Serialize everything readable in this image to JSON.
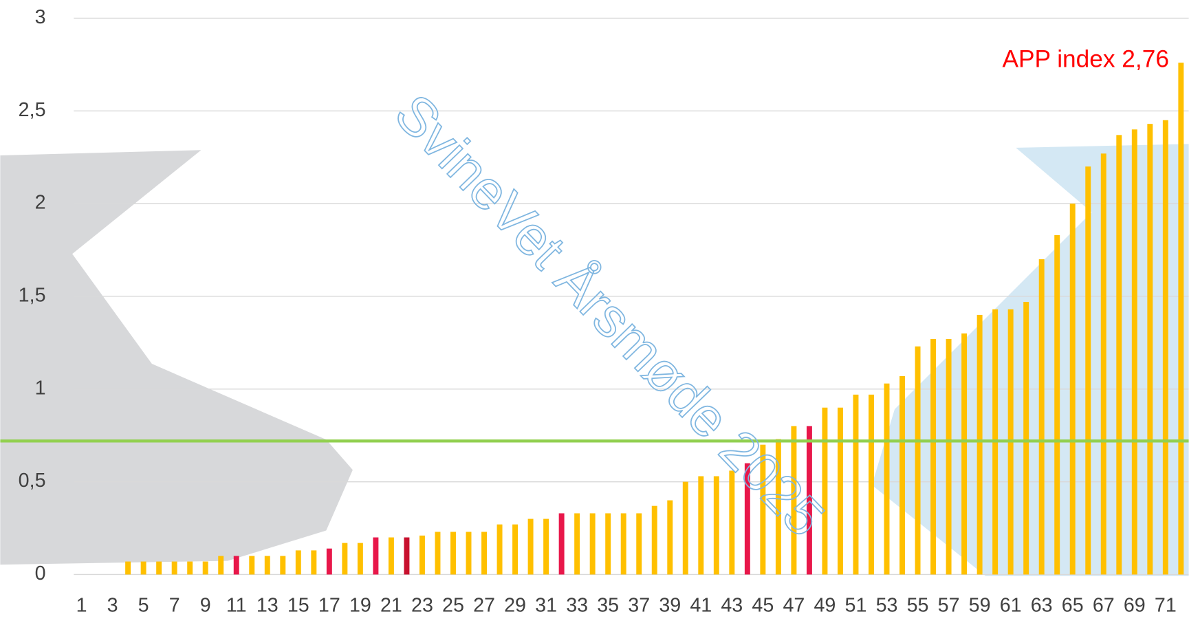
{
  "chart_data": {
    "type": "bar",
    "categories": [
      "1",
      null,
      "3",
      null,
      "5",
      null,
      "7",
      null,
      "9",
      null,
      "11",
      null,
      "13",
      null,
      "15",
      null,
      "17",
      null,
      "19",
      null,
      "21",
      null,
      "23",
      null,
      "25",
      null,
      "27",
      null,
      "29",
      null,
      "31",
      null,
      "33",
      null,
      "35",
      null,
      "37",
      null,
      "39",
      null,
      "41",
      null,
      "43",
      null,
      "45",
      null,
      "47",
      null,
      "49",
      null,
      "51",
      null,
      "53",
      null,
      "55",
      null,
      "57",
      null,
      "59",
      null,
      "61",
      null,
      "63",
      null,
      "65",
      null,
      "67",
      null,
      "69",
      null,
      "71",
      null
    ],
    "values": [
      0,
      0,
      0,
      0.07,
      0.07,
      0.07,
      0.07,
      0.07,
      0.07,
      0.1,
      0.1,
      0.1,
      0.1,
      0.1,
      0.13,
      0.13,
      0.14,
      0.17,
      0.17,
      0.2,
      0.2,
      0.2,
      0.21,
      0.23,
      0.23,
      0.23,
      0.23,
      0.27,
      0.27,
      0.3,
      0.3,
      0.33,
      0.33,
      0.33,
      0.33,
      0.33,
      0.33,
      0.37,
      0.4,
      0.5,
      0.53,
      0.53,
      0.56,
      0.6,
      0.7,
      0.73,
      0.8,
      0.8,
      0.9,
      0.9,
      0.97,
      0.97,
      1.03,
      1.07,
      1.23,
      1.27,
      1.27,
      1.3,
      1.4,
      1.43,
      1.43,
      1.47,
      1.7,
      1.83,
      2.0,
      2.2,
      2.27,
      2.37,
      2.4,
      2.43,
      2.45,
      2.76
    ],
    "colors": [
      "#ffc000",
      "#ffc000",
      "#ffc000",
      "#ffc000",
      "#ffc000",
      "#ffc000",
      "#ffc000",
      "#ffc000",
      "#ffc000",
      "#ffc000",
      "#e8174a",
      "#ffc000",
      "#ffc000",
      "#ffc000",
      "#ffc000",
      "#ffc000",
      "#e8174a",
      "#ffc000",
      "#ffc000",
      "#e8174a",
      "#ffc000",
      "#c8102e",
      "#ffc000",
      "#ffc000",
      "#ffc000",
      "#ffc000",
      "#ffc000",
      "#ffc000",
      "#ffc000",
      "#ffc000",
      "#ffc000",
      "#e8174a",
      "#ffc000",
      "#ffc000",
      "#ffc000",
      "#ffc000",
      "#ffc000",
      "#ffc000",
      "#ffc000",
      "#ffc000",
      "#ffc000",
      "#ffc000",
      "#ffc000",
      "#e8174a",
      "#ffc000",
      "#ffc000",
      "#ffc000",
      "#e8174a",
      "#ffc000",
      "#ffc000",
      "#ffc000",
      "#ffc000",
      "#ffc000",
      "#ffc000",
      "#ffc000",
      "#ffc000",
      "#ffc000",
      "#ffc000",
      "#ffc000",
      "#ffc000",
      "#ffc000",
      "#ffc000",
      "#ffc000",
      "#ffc000",
      "#ffc000",
      "#ffc000",
      "#ffc000",
      "#ffc000",
      "#ffc000",
      "#ffc000",
      "#ffc000",
      "#ffc000"
    ],
    "ylim": [
      0,
      3
    ],
    "yticks": [
      0,
      {
        "value": 0.5,
        "label": "0,5"
      },
      1,
      {
        "value": 1.5,
        "label": "1,5"
      },
      2,
      {
        "value": 2.5,
        "label": "2,5"
      },
      3
    ],
    "grid": true,
    "reference_line": {
      "value": 0.72,
      "color": "#92d050"
    },
    "annotation": "APP index 2,76",
    "watermark": "SvineVet Årsmøde 2025"
  }
}
